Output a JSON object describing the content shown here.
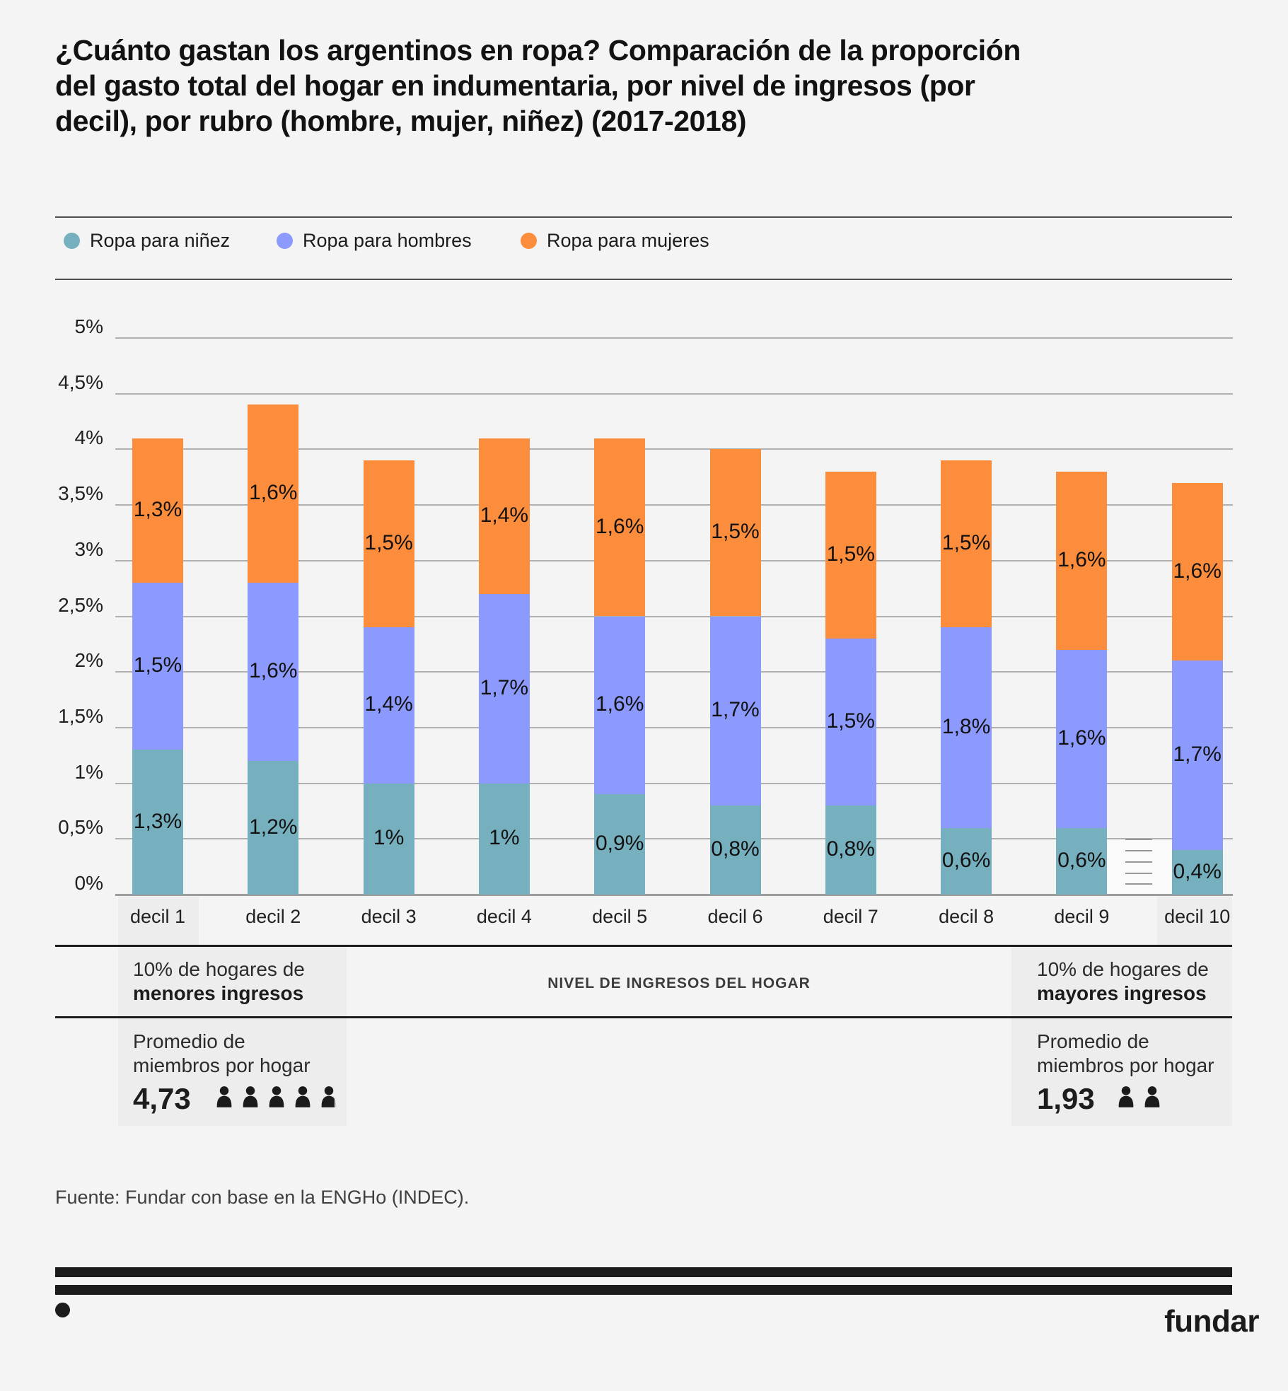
{
  "title_lines": [
    "¿Cuánto gastan los argentinos en ropa? Comparación de la proporción",
    "del gasto total del hogar en indumentaria, por nivel de ingresos (por",
    "decil), por rubro (hombre, mujer, niñez) (2017-2018)"
  ],
  "legend": {
    "items": [
      {
        "key": "ninez",
        "label": "Ropa para niñez",
        "color": "#76afbd"
      },
      {
        "key": "hombres",
        "label": "Ropa para hombres",
        "color": "#8b9afc"
      },
      {
        "key": "mujeres",
        "label": "Ropa para mujeres",
        "color": "#fb8d3c"
      }
    ]
  },
  "chart_data": {
    "type": "bar",
    "stacked": true,
    "categories": [
      "decil 1",
      "decil 2",
      "decil 3",
      "decil 4",
      "decil 5",
      "decil 6",
      "decil 7",
      "decil 8",
      "decil 9",
      "decil 10"
    ],
    "series": [
      {
        "key": "ninez",
        "name": "Ropa para niñez",
        "color": "#76afbd",
        "values": [
          1.3,
          1.2,
          1.0,
          1.0,
          0.9,
          0.8,
          0.8,
          0.6,
          0.6,
          0.4
        ],
        "labels": [
          "1,3%",
          "1,2%",
          "1%",
          "1%",
          "0,9%",
          "0,8%",
          "0,8%",
          "0,6%",
          "0,6%",
          "0,4%"
        ]
      },
      {
        "key": "hombres",
        "name": "Ropa para hombres",
        "color": "#8b9afc",
        "values": [
          1.5,
          1.6,
          1.4,
          1.7,
          1.6,
          1.7,
          1.5,
          1.8,
          1.6,
          1.7
        ],
        "labels": [
          "1,5%",
          "1,6%",
          "1,4%",
          "1,7%",
          "1,6%",
          "1,7%",
          "1,5%",
          "1,8%",
          "1,6%",
          "1,7%"
        ]
      },
      {
        "key": "mujeres",
        "name": "Ropa para mujeres",
        "color": "#fb8d3c",
        "values": [
          1.3,
          1.6,
          1.5,
          1.4,
          1.6,
          1.5,
          1.5,
          1.5,
          1.6,
          1.6
        ],
        "labels": [
          "1,3%",
          "1,6%",
          "1,5%",
          "1,4%",
          "1,6%",
          "1,5%",
          "1,5%",
          "1,5%",
          "1,6%",
          "1,6%"
        ]
      }
    ],
    "y_ticks": [
      "0%",
      "0,5%",
      "1%",
      "1,5%",
      "2%",
      "2,5%",
      "3%",
      "3,5%",
      "4%",
      "4,5%",
      "5%"
    ],
    "ylim": [
      0,
      5
    ],
    "grid": true,
    "legend_position": "top",
    "xlabel": "NIVEL DE INGRESOS DEL HOGAR"
  },
  "annotations": {
    "row1": {
      "left_line1": "10% de hogares de",
      "left_line2": "menores ingresos",
      "center": "NIVEL DE INGRESOS DEL HOGAR",
      "right_line1": "10% de hogares de",
      "right_line2": "mayores ingresos"
    },
    "row2": {
      "label_line1": "Promedio de",
      "label_line2": "miembros por hogar",
      "left_value": "4,73",
      "right_value": "1,93"
    }
  },
  "footer": {
    "source": "Fuente: Fundar con base en la ENGHo (INDEC).",
    "brand": "fundar"
  },
  "colors": {
    "background": "#f4f4f4",
    "panel": "#ededed",
    "gridline": "#b0b0b0",
    "baseline": "#9c9c9c",
    "ink": "#1b1b1b",
    "icon_gray": "#c9c9c9"
  }
}
